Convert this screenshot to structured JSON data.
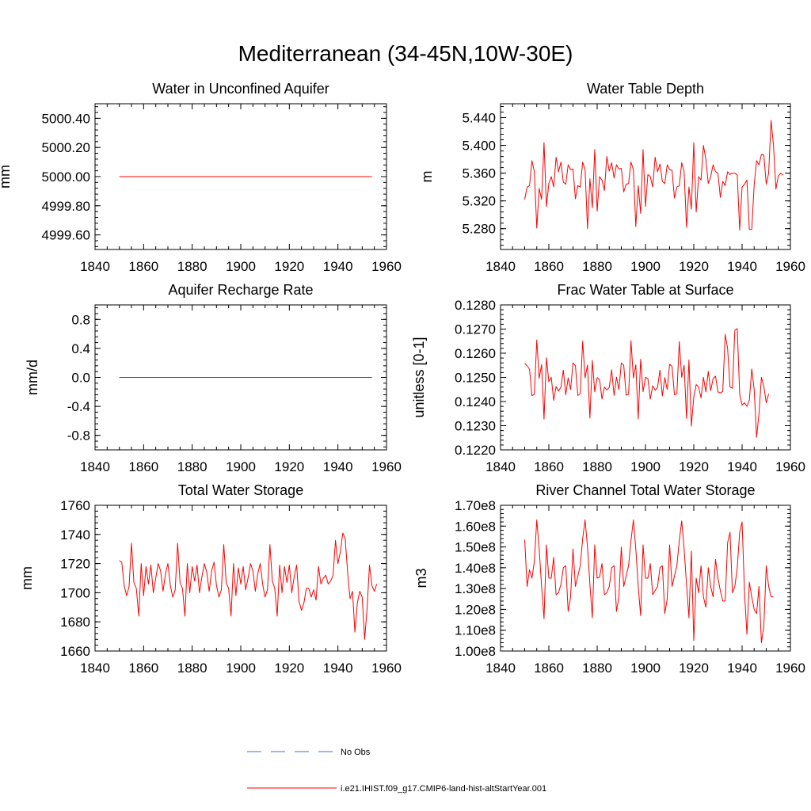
{
  "title": "Mediterranean (34-45N,10W-30E)",
  "colors": {
    "model": "#ff0000",
    "obs": "#4169e1",
    "axis": "#000000"
  },
  "legend": {
    "obs_label": "No Obs",
    "model_label": "i.e21.IHIST.f09_g17.CMIP6-land-hist-altStartYear.001"
  },
  "chart_data": [
    {
      "type": "line",
      "title": "Water in Unconfined Aquifer",
      "ylabel": "mm",
      "xlim": [
        1840,
        1960
      ],
      "ylim": [
        4999.5,
        5000.5
      ],
      "xticks": [
        1840,
        1860,
        1880,
        1900,
        1920,
        1940,
        1960
      ],
      "xtick_labels": [
        "1840",
        "1860",
        "1880",
        "1900",
        "1920",
        "1940",
        "1960"
      ],
      "yticks": [
        4999.6,
        4999.8,
        5000.0,
        5000.2,
        5000.4
      ],
      "ytick_labels": [
        "4999.60",
        "4999.80",
        "5000.00",
        "5000.20",
        "5000.40"
      ],
      "x_start": 1850,
      "constant": 5000.0,
      "count": 105,
      "series": [
        {
          "values": []
        }
      ]
    },
    {
      "type": "line",
      "title": "Water Table Depth",
      "ylabel": "m",
      "xlim": [
        1840,
        1960
      ],
      "ylim": [
        5.25,
        5.46
      ],
      "xticks": [
        1840,
        1860,
        1880,
        1900,
        1920,
        1940,
        1960
      ],
      "xtick_labels": [
        "1840",
        "1860",
        "1880",
        "1900",
        "1920",
        "1940",
        "1960"
      ],
      "yticks": [
        5.28,
        5.32,
        5.36,
        5.4,
        5.44
      ],
      "ytick_labels": [
        "5.280",
        "5.320",
        "5.360",
        "5.400",
        "5.440"
      ],
      "x_start": 1850,
      "series": [
        {
          "values": [
            5.322,
            5.34,
            5.342,
            5.378,
            5.362,
            5.281,
            5.338,
            5.322,
            5.404,
            5.312,
            5.345,
            5.355,
            5.34,
            5.383,
            5.362,
            5.376,
            5.347,
            5.344,
            5.372,
            5.365,
            5.366,
            5.323,
            5.342,
            5.34,
            5.376,
            5.365,
            5.28,
            5.352,
            5.31,
            5.394,
            5.305,
            5.355,
            5.35,
            5.335,
            5.384,
            5.363,
            5.375,
            5.353,
            5.372,
            5.366,
            5.367,
            5.333,
            5.344,
            5.345,
            5.376,
            5.365,
            5.283,
            5.342,
            5.302,
            5.394,
            5.312,
            5.358,
            5.355,
            5.34,
            5.383,
            5.362,
            5.373,
            5.348,
            5.345,
            5.372,
            5.365,
            5.364,
            5.324,
            5.34,
            5.342,
            5.375,
            5.362,
            5.282,
            5.34,
            5.308,
            5.404,
            5.304,
            5.355,
            5.35,
            5.4,
            5.38,
            5.345,
            5.355,
            5.372,
            5.362,
            5.36,
            5.325,
            5.348,
            5.342,
            5.362,
            5.358,
            5.36,
            5.36,
            5.357,
            5.278,
            5.34,
            5.344,
            5.35,
            5.279,
            5.279,
            5.343,
            5.378,
            5.372,
            5.387,
            5.386,
            5.344,
            5.36,
            5.436,
            5.4,
            5.337,
            5.356,
            5.36,
            5.357
          ]
        }
      ]
    },
    {
      "type": "line",
      "title": "Aquifer Recharge Rate",
      "ylabel": "mm/d",
      "xlim": [
        1840,
        1960
      ],
      "ylim": [
        -1.0,
        1.0
      ],
      "xticks": [
        1840,
        1860,
        1880,
        1900,
        1920,
        1940,
        1960
      ],
      "xtick_labels": [
        "1840",
        "1860",
        "1880",
        "1900",
        "1920",
        "1940",
        "1960"
      ],
      "yticks": [
        -0.8,
        -0.4,
        0.0,
        0.4,
        0.8
      ],
      "ytick_labels": [
        "-0.8",
        "-0.4",
        "0.0",
        "0.4",
        "0.8"
      ],
      "x_start": 1850,
      "constant": 0.0,
      "count": 105,
      "series": [
        {
          "values": []
        }
      ]
    },
    {
      "type": "line",
      "title": "Frac Water Table at Surface",
      "ylabel": "unitless [0-1]",
      "xlim": [
        1840,
        1960
      ],
      "ylim": [
        0.122,
        0.128
      ],
      "xticks": [
        1840,
        1860,
        1880,
        1900,
        1920,
        1940,
        1960
      ],
      "xtick_labels": [
        "1840",
        "1860",
        "1880",
        "1900",
        "1920",
        "1940",
        "1960"
      ],
      "yticks": [
        0.122,
        0.123,
        0.124,
        0.125,
        0.126,
        0.127,
        0.128
      ],
      "ytick_labels": [
        "0.1220",
        "0.1230",
        "0.1240",
        "0.1250",
        "0.1260",
        "0.1270",
        "0.1280"
      ],
      "x_start": 1850,
      "series": [
        {
          "values": [
            0.12558,
            0.12548,
            0.12534,
            0.12424,
            0.1243,
            0.12655,
            0.12496,
            0.12553,
            0.12327,
            0.12581,
            0.12482,
            0.125,
            0.12405,
            0.12462,
            0.12443,
            0.1246,
            0.1253,
            0.12428,
            0.12498,
            0.1245,
            0.1256,
            0.12548,
            0.12425,
            0.12432,
            0.1265,
            0.12498,
            0.12551,
            0.12331,
            0.1257,
            0.1244,
            0.12499,
            0.1249,
            0.1241,
            0.1246,
            0.12448,
            0.12458,
            0.12531,
            0.12425,
            0.12501,
            0.12449,
            0.1256,
            0.1255,
            0.12426,
            0.1243,
            0.12652,
            0.12497,
            0.12552,
            0.12328,
            0.12575,
            0.12441,
            0.125,
            0.12495,
            0.1241,
            0.12465,
            0.12447,
            0.12459,
            0.1253,
            0.12423,
            0.12499,
            0.1245,
            0.12555,
            0.12545,
            0.12428,
            0.12433,
            0.12648,
            0.125,
            0.1255,
            0.1233,
            0.12572,
            0.12298,
            0.1242,
            0.1247,
            0.1246,
            0.12415,
            0.125,
            0.1244,
            0.12525,
            0.12445,
            0.12495,
            0.12505,
            0.1244,
            0.12435,
            0.12442,
            0.12678,
            0.1262,
            0.1246,
            0.12455,
            0.12695,
            0.12702,
            0.1243,
            0.12385,
            0.12395,
            0.1238,
            0.12405,
            0.12535,
            0.1245,
            0.12252,
            0.1235,
            0.125,
            0.12462,
            0.12395,
            0.12432
          ]
        }
      ]
    },
    {
      "type": "line",
      "title": "Total Water Storage",
      "ylabel": "mm",
      "xlim": [
        1840,
        1960
      ],
      "ylim": [
        1660,
        1760
      ],
      "xticks": [
        1840,
        1860,
        1880,
        1900,
        1920,
        1940,
        1960
      ],
      "xtick_labels": [
        "1840",
        "1860",
        "1880",
        "1900",
        "1920",
        "1940",
        "1960"
      ],
      "yticks": [
        1660,
        1680,
        1700,
        1720,
        1740,
        1760
      ],
      "ytick_labels": [
        "1660",
        "1680",
        "1700",
        "1720",
        "1740",
        "1760"
      ],
      "x_start": 1850,
      "series": [
        {
          "values": [
            1722,
            1721,
            1705,
            1698,
            1704,
            1734,
            1707,
            1703,
            1684,
            1720,
            1698,
            1718,
            1706,
            1719,
            1700,
            1710,
            1720,
            1715,
            1701,
            1713,
            1720,
            1705,
            1697,
            1702,
            1734,
            1707,
            1703,
            1684,
            1720,
            1700,
            1718,
            1708,
            1719,
            1700,
            1711,
            1720,
            1714,
            1701,
            1715,
            1721,
            1705,
            1697,
            1702,
            1733,
            1707,
            1703,
            1684,
            1720,
            1698,
            1717,
            1706,
            1718,
            1702,
            1710,
            1720,
            1715,
            1701,
            1713,
            1720,
            1706,
            1697,
            1702,
            1733,
            1708,
            1703,
            1684,
            1719,
            1700,
            1718,
            1707,
            1719,
            1700,
            1711,
            1719,
            1694,
            1688,
            1693,
            1703,
            1703,
            1697,
            1702,
            1695,
            1718,
            1706,
            1710,
            1712,
            1706,
            1708,
            1712,
            1736,
            1720,
            1728,
            1741,
            1737,
            1714,
            1696,
            1701,
            1673,
            1693,
            1701,
            1697,
            1668,
            1689,
            1719,
            1705,
            1701,
            1706
          ]
        }
      ]
    },
    {
      "type": "line",
      "title": "River Channel Total Water Storage",
      "ylabel": "m3",
      "xlim": [
        1840,
        1960
      ],
      "ylim": [
        100000000,
        170000000
      ],
      "xticks": [
        1840,
        1860,
        1880,
        1900,
        1920,
        1940,
        1960
      ],
      "xtick_labels": [
        "1840",
        "1860",
        "1880",
        "1900",
        "1920",
        "1940",
        "1960"
      ],
      "yticks": [
        100000000,
        110000000,
        120000000,
        130000000,
        140000000,
        150000000,
        160000000,
        170000000
      ],
      "ytick_labels": [
        "1.00e8",
        "1.10e8",
        "1.20e8",
        "1.30e8",
        "1.40e8",
        "1.50e8",
        "1.60e8",
        "1.70e8"
      ],
      "x_start": 1850,
      "series": [
        {
          "values": [
            153500000,
            131000000,
            139000000,
            135000000,
            143000000,
            163000000,
            149000000,
            131000000,
            115500000,
            151000000,
            135000000,
            135000000,
            145000000,
            127000000,
            128000000,
            132000000,
            140000000,
            141000000,
            119000000,
            126000000,
            149000000,
            131000000,
            136000000,
            141000000,
            154000000,
            163000000,
            150000000,
            132000000,
            116000000,
            151000000,
            135000000,
            135500000,
            142000000,
            127000000,
            128000000,
            131000000,
            140000000,
            141000000,
            119000000,
            126000000,
            150000000,
            131000000,
            136000000,
            141000000,
            153000000,
            163000000,
            149000000,
            131000000,
            117000000,
            151000000,
            135000000,
            135000000,
            142000000,
            127000000,
            129000000,
            131000000,
            140000000,
            141000000,
            118000000,
            125000000,
            151000000,
            131000000,
            136000000,
            141000000,
            153000000,
            162500000,
            149000000,
            132000000,
            116000000,
            148000000,
            105000000,
            135000000,
            128000000,
            141000000,
            126000000,
            121000000,
            140000000,
            131000000,
            126000000,
            144000000,
            135000000,
            129000000,
            124000000,
            124000000,
            152000000,
            157000000,
            128000000,
            131000000,
            140000000,
            157000000,
            162000000,
            128000000,
            108000000,
            133000000,
            126000000,
            120000000,
            118000000,
            131000000,
            104000000,
            112000000,
            141000000,
            131000000,
            126000000,
            126000000
          ]
        }
      ]
    }
  ]
}
